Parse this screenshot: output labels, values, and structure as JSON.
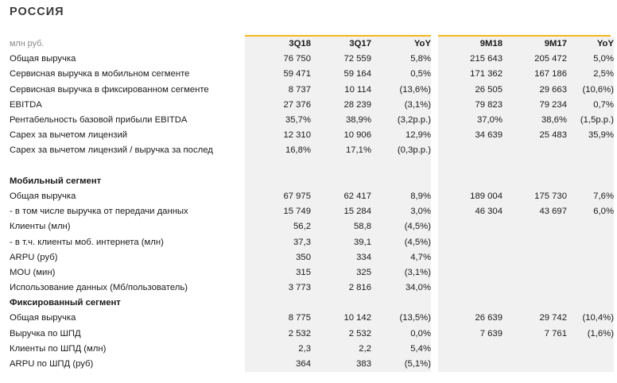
{
  "title": "РОССИЯ",
  "header": {
    "unit": "млн руб.",
    "q18": "3Q18",
    "q17": "3Q17",
    "qyoy": "YoY",
    "m18": "9M18",
    "m17": "9M17",
    "myoy": "YoY"
  },
  "rows": [
    {
      "label": "Общая выручка",
      "q18": "76 750",
      "q17": "72 559",
      "qyoy": "5,8%",
      "m18": "215 643",
      "m17": "205 472",
      "myoy": "5,0%"
    },
    {
      "label": "Сервисная выручка в мобильном сегменте",
      "q18": "59 471",
      "q17": "59 164",
      "qyoy": "0,5%",
      "m18": "171 362",
      "m17": "167 186",
      "myoy": "2,5%"
    },
    {
      "label": "Сервисная выручка в фиксированном сегменте",
      "q18": "8 737",
      "q17": "10 114",
      "qyoy": "(13,6%)",
      "m18": "26 505",
      "m17": "29 663",
      "myoy": "(10,6%)"
    },
    {
      "label": "EBITDA",
      "q18": "27 376",
      "q17": "28 239",
      "qyoy": "(3,1%)",
      "m18": "79 823",
      "m17": "79 234",
      "myoy": "0,7%"
    },
    {
      "label": "Рентабельность базовой прибыли EBITDA",
      "q18": "35,7%",
      "q17": "38,9%",
      "qyoy": "(3,2p.p.)",
      "m18": "37,0%",
      "m17": "38,6%",
      "myoy": "(1,5p.p.)"
    },
    {
      "label": "Capex за вычетом лицензий",
      "q18": "12 310",
      "q17": "10 906",
      "qyoy": "12,9%",
      "m18": "34 639",
      "m17": "25 483",
      "myoy": "35,9%"
    },
    {
      "label": "Capex за вычетом лицензий / выручка за послед",
      "q18": "16,8%",
      "q17": "17,1%",
      "qyoy": "(0,3p.p.)",
      "m18": "",
      "m17": "",
      "myoy": ""
    },
    {
      "blank": true
    },
    {
      "section": true,
      "label": "Мобильный сегмент"
    },
    {
      "label": "Общая выручка",
      "q18": "67 975",
      "q17": "62 417",
      "qyoy": "8,9%",
      "m18": "189 004",
      "m17": "175 730",
      "myoy": "7,6%"
    },
    {
      "label": "- в том числе выручка от передачи данных",
      "q18": "15 749",
      "q17": "15 284",
      "qyoy": "3,0%",
      "m18": "46 304",
      "m17": "43 697",
      "myoy": "6,0%"
    },
    {
      "label": "Клиенты (млн)",
      "q18": "56,2",
      "q17": "58,8",
      "qyoy": "(4,5%)",
      "m18": "",
      "m17": "",
      "myoy": ""
    },
    {
      "label": "- в т.ч. клиенты моб. интернета (млн)",
      "q18": "37,3",
      "q17": "39,1",
      "qyoy": "(4,5%)",
      "m18": "",
      "m17": "",
      "myoy": ""
    },
    {
      "label": "ARPU (руб)",
      "q18": "350",
      "q17": "334",
      "qyoy": "4,7%",
      "m18": "",
      "m17": "",
      "myoy": ""
    },
    {
      "label": "MOU (мин)",
      "q18": "315",
      "q17": "325",
      "qyoy": "(3,1%)",
      "m18": "",
      "m17": "",
      "myoy": ""
    },
    {
      "label": "Использование данных (Мб/пользователь)",
      "q18": "3 773",
      "q17": "2 816",
      "qyoy": "34,0%",
      "m18": "",
      "m17": "",
      "myoy": ""
    },
    {
      "section": true,
      "label": "Фиксированный сегмент"
    },
    {
      "label": "Общая выручка",
      "q18": "8 775",
      "q17": "10 142",
      "qyoy": "(13,5%)",
      "m18": "26 639",
      "m17": "29 742",
      "myoy": "(10,4%)"
    },
    {
      "label": "Выручка по ШПД",
      "q18": "2 532",
      "q17": "2 532",
      "qyoy": "0,0%",
      "m18": "7 639",
      "m17": "7 761",
      "myoy": "(1,6%)"
    },
    {
      "label": "Клиенты по ШПД (млн)",
      "q18": "2,3",
      "q17": "2,2",
      "qyoy": "5,4%",
      "m18": "",
      "m17": "",
      "myoy": ""
    },
    {
      "label": "ARPU по ШПД (руб)",
      "q18": "364",
      "q17": "383",
      "qyoy": "(5,1%)",
      "m18": "",
      "m17": "",
      "myoy": ""
    }
  ]
}
